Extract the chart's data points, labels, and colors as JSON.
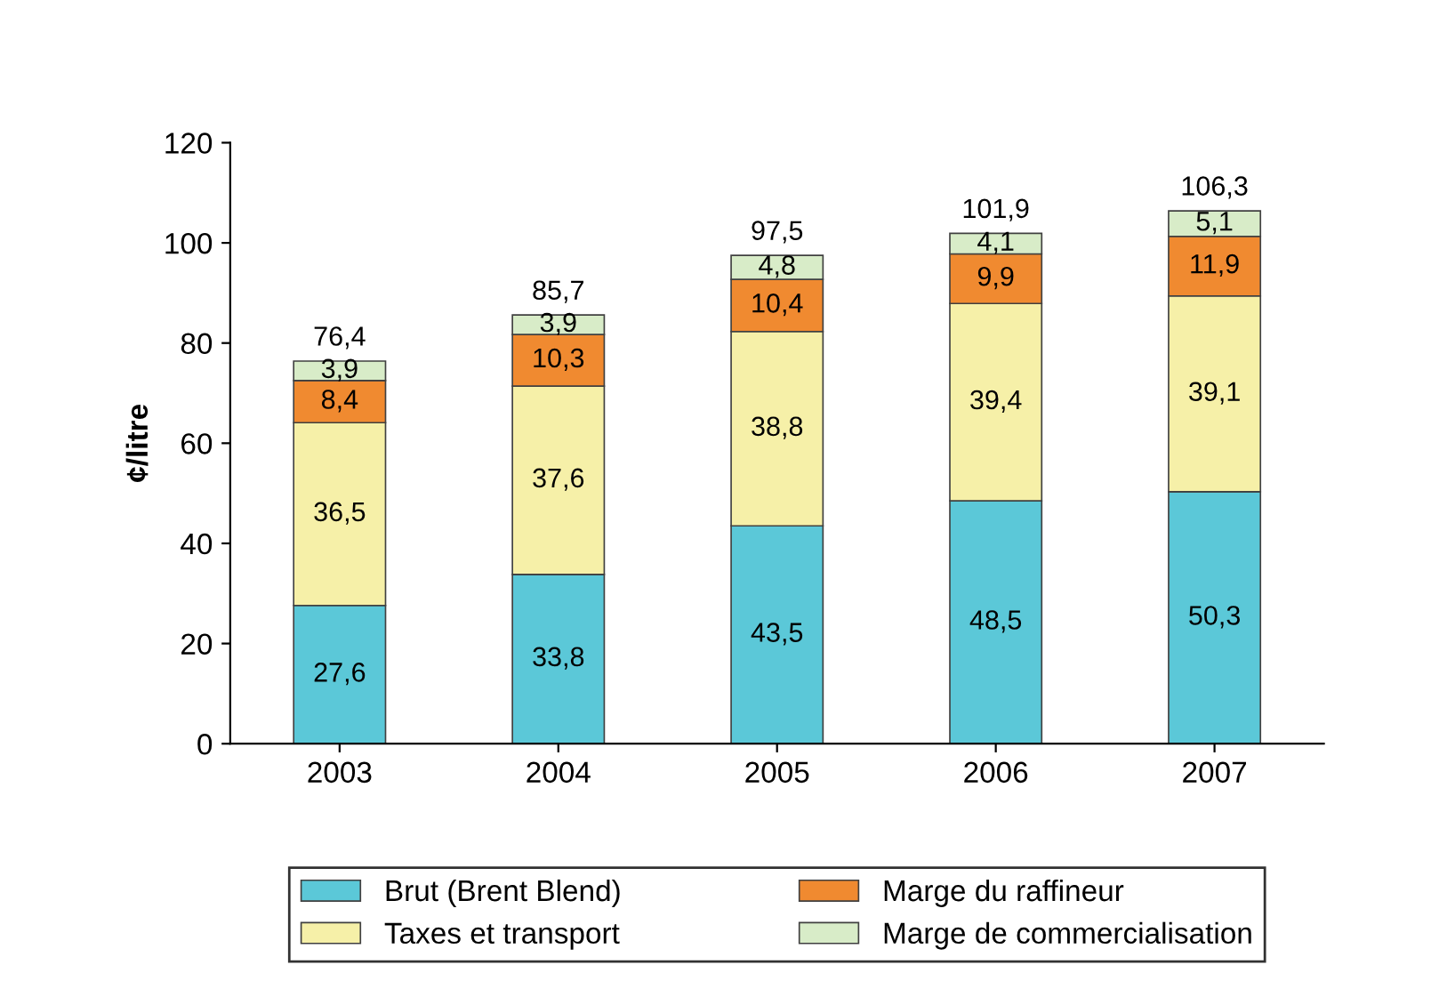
{
  "chart_data": {
    "type": "bar",
    "stacked": true,
    "ylabel": "¢/litre",
    "categories": [
      "2003",
      "2004",
      "2005",
      "2006",
      "2007"
    ],
    "series": [
      {
        "name": "Brut (Brent Blend)",
        "color": "#5bc8d8",
        "values": [
          27.6,
          33.8,
          43.5,
          48.5,
          50.3
        ],
        "value_labels": [
          "27,6",
          "33,8",
          "43,5",
          "48,5",
          "50,3"
        ]
      },
      {
        "name": "Taxes et transport",
        "color": "#f6f0a8",
        "values": [
          36.5,
          37.6,
          38.8,
          39.4,
          39.1
        ],
        "value_labels": [
          "36,5",
          "37,6",
          "38,8",
          "39,4",
          "39,1"
        ]
      },
      {
        "name": "Marge du raffineur",
        "color": "#f08a30",
        "values": [
          8.4,
          10.3,
          10.4,
          9.9,
          11.9
        ],
        "value_labels": [
          "8,4",
          "10,3",
          "10,4",
          "9,9",
          "11,9"
        ]
      },
      {
        "name": "Marge de commercialisation",
        "color": "#d8ecc8",
        "values": [
          3.9,
          3.9,
          4.8,
          4.1,
          5.1
        ],
        "value_labels": [
          "3,9",
          "3,9",
          "4,8",
          "4,1",
          "5,1"
        ]
      }
    ],
    "totals": [
      "76,4",
      "85,7",
      "97,5",
      "101,9",
      "106,3"
    ],
    "ylim": [
      0,
      120
    ],
    "yticks": [
      0,
      20,
      40,
      60,
      80,
      100,
      120
    ],
    "grid": false,
    "legend": "bottom"
  }
}
